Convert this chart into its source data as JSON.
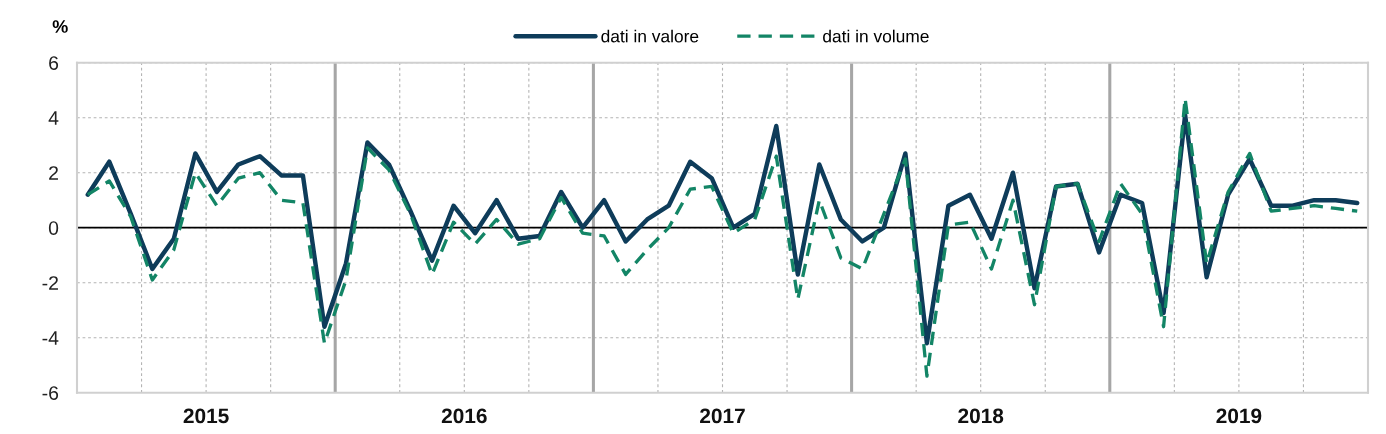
{
  "chart_data": {
    "type": "line",
    "ylabel": "%",
    "x": [
      2015.0417,
      2015.125,
      2015.2083,
      2015.2917,
      2015.375,
      2015.4583,
      2015.5417,
      2015.625,
      2015.7083,
      2015.7917,
      2015.875,
      2015.9583,
      2016.0417,
      2016.125,
      2016.2083,
      2016.2917,
      2016.375,
      2016.4583,
      2016.5417,
      2016.625,
      2016.7083,
      2016.7917,
      2016.875,
      2016.9583,
      2017.0417,
      2017.125,
      2017.2083,
      2017.2917,
      2017.375,
      2017.4583,
      2017.5417,
      2017.625,
      2017.7083,
      2017.7917,
      2017.875,
      2017.9583,
      2018.0417,
      2018.125,
      2018.2083,
      2018.2917,
      2018.375,
      2018.4583,
      2018.5417,
      2018.625,
      2018.7083,
      2018.7917,
      2018.875,
      2018.9583,
      2019.0417,
      2019.125,
      2019.2083,
      2019.2917,
      2019.375,
      2019.4583,
      2019.5417,
      2019.625,
      2019.7083,
      2019.7917,
      2019.875,
      2019.9583
    ],
    "series": [
      {
        "name": "dati in valore",
        "color": "#0e3c5a",
        "line_style": "solid",
        "values": [
          1.2,
          2.4,
          0.5,
          -1.5,
          -0.4,
          2.7,
          1.3,
          2.3,
          2.6,
          1.9,
          1.9,
          -3.6,
          -1.3,
          3.1,
          2.3,
          0.6,
          -1.2,
          0.8,
          -0.2,
          1.0,
          -0.4,
          -0.3,
          1.3,
          0.0,
          1.0,
          -0.5,
          0.3,
          0.8,
          2.4,
          1.8,
          0.0,
          0.5,
          3.7,
          -1.7,
          2.3,
          0.3,
          -0.5,
          0.0,
          2.7,
          -4.2,
          0.8,
          1.2,
          -0.4,
          2.0,
          -2.2,
          1.5,
          1.6,
          -0.9,
          1.2,
          0.9,
          -3.1,
          4.1,
          -1.8,
          1.2,
          2.5,
          0.8,
          0.8,
          1.0,
          1.0,
          0.9
        ]
      },
      {
        "name": "dati in volume",
        "color": "#138566",
        "line_style": "dashed",
        "values": [
          1.2,
          1.7,
          0.4,
          -1.9,
          -0.8,
          2.0,
          0.8,
          1.8,
          2.0,
          1.0,
          0.9,
          -4.2,
          -1.9,
          2.9,
          2.1,
          0.5,
          -1.7,
          0.2,
          -0.6,
          0.3,
          -0.6,
          -0.4,
          1.1,
          -0.2,
          -0.3,
          -1.7,
          -0.8,
          0.0,
          1.4,
          1.5,
          -0.2,
          0.3,
          2.6,
          -2.6,
          1.0,
          -1.1,
          -1.5,
          0.5,
          2.5,
          -5.4,
          0.1,
          0.2,
          -1.5,
          1.0,
          -2.8,
          1.5,
          1.6,
          -0.5,
          1.6,
          0.5,
          -3.6,
          4.7,
          -1.3,
          1.3,
          2.7,
          0.6,
          0.7,
          0.8,
          0.7,
          0.6
        ]
      }
    ],
    "xlim": [
      2015,
      2020
    ],
    "xticks": [
      {
        "value": 2015.25,
        "label": null
      },
      {
        "value": 2015.5,
        "label": "2015"
      },
      {
        "value": 2015.75,
        "label": null
      },
      {
        "value": 2016.25,
        "label": null
      },
      {
        "value": 2016.5,
        "label": "2016"
      },
      {
        "value": 2016.75,
        "label": null
      },
      {
        "value": 2017.25,
        "label": null
      },
      {
        "value": 2017.5,
        "label": "2017"
      },
      {
        "value": 2017.75,
        "label": null
      },
      {
        "value": 2018.25,
        "label": null
      },
      {
        "value": 2018.5,
        "label": "2018"
      },
      {
        "value": 2018.75,
        "label": null
      },
      {
        "value": 2019.25,
        "label": null
      },
      {
        "value": 2019.5,
        "label": "2019"
      },
      {
        "value": 2019.75,
        "label": null
      }
    ],
    "ylim": [
      -6,
      6
    ],
    "yticks": [
      -6,
      -4,
      -2,
      0,
      2,
      4,
      6
    ],
    "ref_lines": [
      {
        "axis": "y",
        "value": 0,
        "color": "#000000",
        "line_style": "solid"
      },
      {
        "axis": "x",
        "value": 2016,
        "color": "#a6a6a6",
        "line_style": "solid"
      },
      {
        "axis": "x",
        "value": 2017,
        "color": "#a6a6a6",
        "line_style": "solid"
      },
      {
        "axis": "x",
        "value": 2018,
        "color": "#a6a6a6",
        "line_style": "solid"
      },
      {
        "axis": "x",
        "value": 2019,
        "color": "#a6a6a6",
        "line_style": "solid"
      }
    ],
    "grid": true,
    "legend": "top",
    "marker": "none"
  }
}
